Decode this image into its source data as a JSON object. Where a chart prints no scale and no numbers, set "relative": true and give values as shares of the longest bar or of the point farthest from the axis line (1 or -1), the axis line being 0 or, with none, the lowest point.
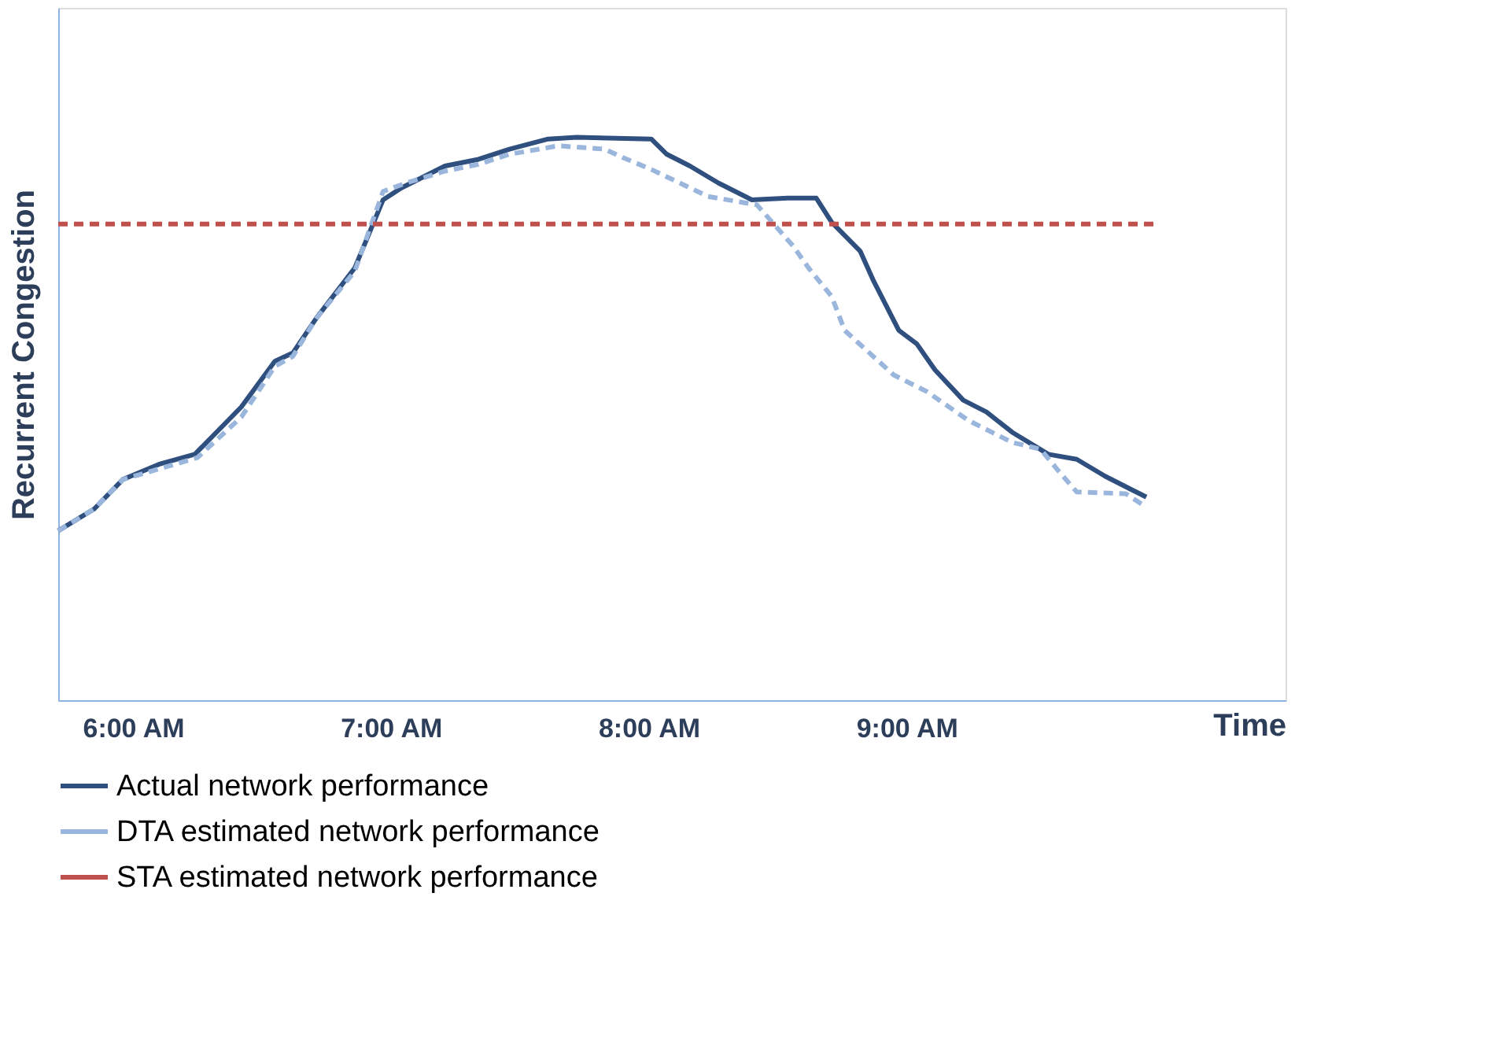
{
  "chart_data": {
    "type": "line",
    "relative": true,
    "xlabel": "Time",
    "ylabel": "Recurrent Congestion",
    "xlim": [
      5.71,
      10.47
    ],
    "xticks": [
      {
        "value": 6,
        "label": "6:00 AM"
      },
      {
        "value": 7,
        "label": "7:00 AM"
      },
      {
        "value": 8,
        "label": "8:00 AM"
      },
      {
        "value": 9,
        "label": "9:00 AM"
      }
    ],
    "grid": false,
    "legend": "bottom",
    "marker": "none",
    "series": [
      {
        "name": "Actual network performance",
        "color": "#2f4f7f",
        "line_style": "solid",
        "x": [
          5.71,
          5.85,
          5.96,
          6.1,
          6.24,
          6.42,
          6.55,
          6.62,
          6.71,
          6.86,
          6.97,
          7.04,
          7.21,
          7.34,
          7.46,
          7.61,
          7.72,
          8.01,
          8.07,
          8.16,
          8.27,
          8.4,
          8.54,
          8.65,
          8.71,
          8.82,
          8.87,
          8.97,
          9.04,
          9.11,
          9.22,
          9.31,
          9.41,
          9.55,
          9.66,
          9.77,
          9.86,
          9.93
        ],
        "values": [
          0.301,
          0.34,
          0.392,
          0.419,
          0.437,
          0.521,
          0.602,
          0.617,
          0.678,
          0.768,
          0.889,
          0.91,
          0.949,
          0.961,
          0.979,
          0.997,
          1,
          0.997,
          0.97,
          0.949,
          0.919,
          0.889,
          0.892,
          0.892,
          0.849,
          0.798,
          0.747,
          0.657,
          0.633,
          0.587,
          0.533,
          0.512,
          0.476,
          0.437,
          0.428,
          0.398,
          0.377,
          0.361
        ]
      },
      {
        "name": "DTA estimated network performance",
        "color": "#9ab6dc",
        "line_style": "dashed",
        "x": [
          5.71,
          5.85,
          5.96,
          6.25,
          6.42,
          6.55,
          6.62,
          6.71,
          6.86,
          6.97,
          7.06,
          7.21,
          7.34,
          7.46,
          7.65,
          7.83,
          7.9,
          8.01,
          8.12,
          8.23,
          8.42,
          8.56,
          8.62,
          8.71,
          8.76,
          8.95,
          9.08,
          9.24,
          9.41,
          9.52,
          9.59,
          9.66,
          9.85,
          9.92
        ],
        "values": [
          0.301,
          0.34,
          0.392,
          0.431,
          0.503,
          0.593,
          0.611,
          0.678,
          0.762,
          0.904,
          0.919,
          0.94,
          0.952,
          0.97,
          0.985,
          0.979,
          0.964,
          0.943,
          0.919,
          0.895,
          0.88,
          0.807,
          0.768,
          0.717,
          0.657,
          0.578,
          0.548,
          0.497,
          0.458,
          0.446,
          0.407,
          0.37,
          0.367,
          0.346
        ]
      },
      {
        "name": "STA estimated network performance",
        "color": "#c0504d",
        "line_style": "dashed",
        "x": [
          5.71,
          9.96
        ],
        "values": [
          0.846,
          0.846
        ]
      }
    ]
  }
}
